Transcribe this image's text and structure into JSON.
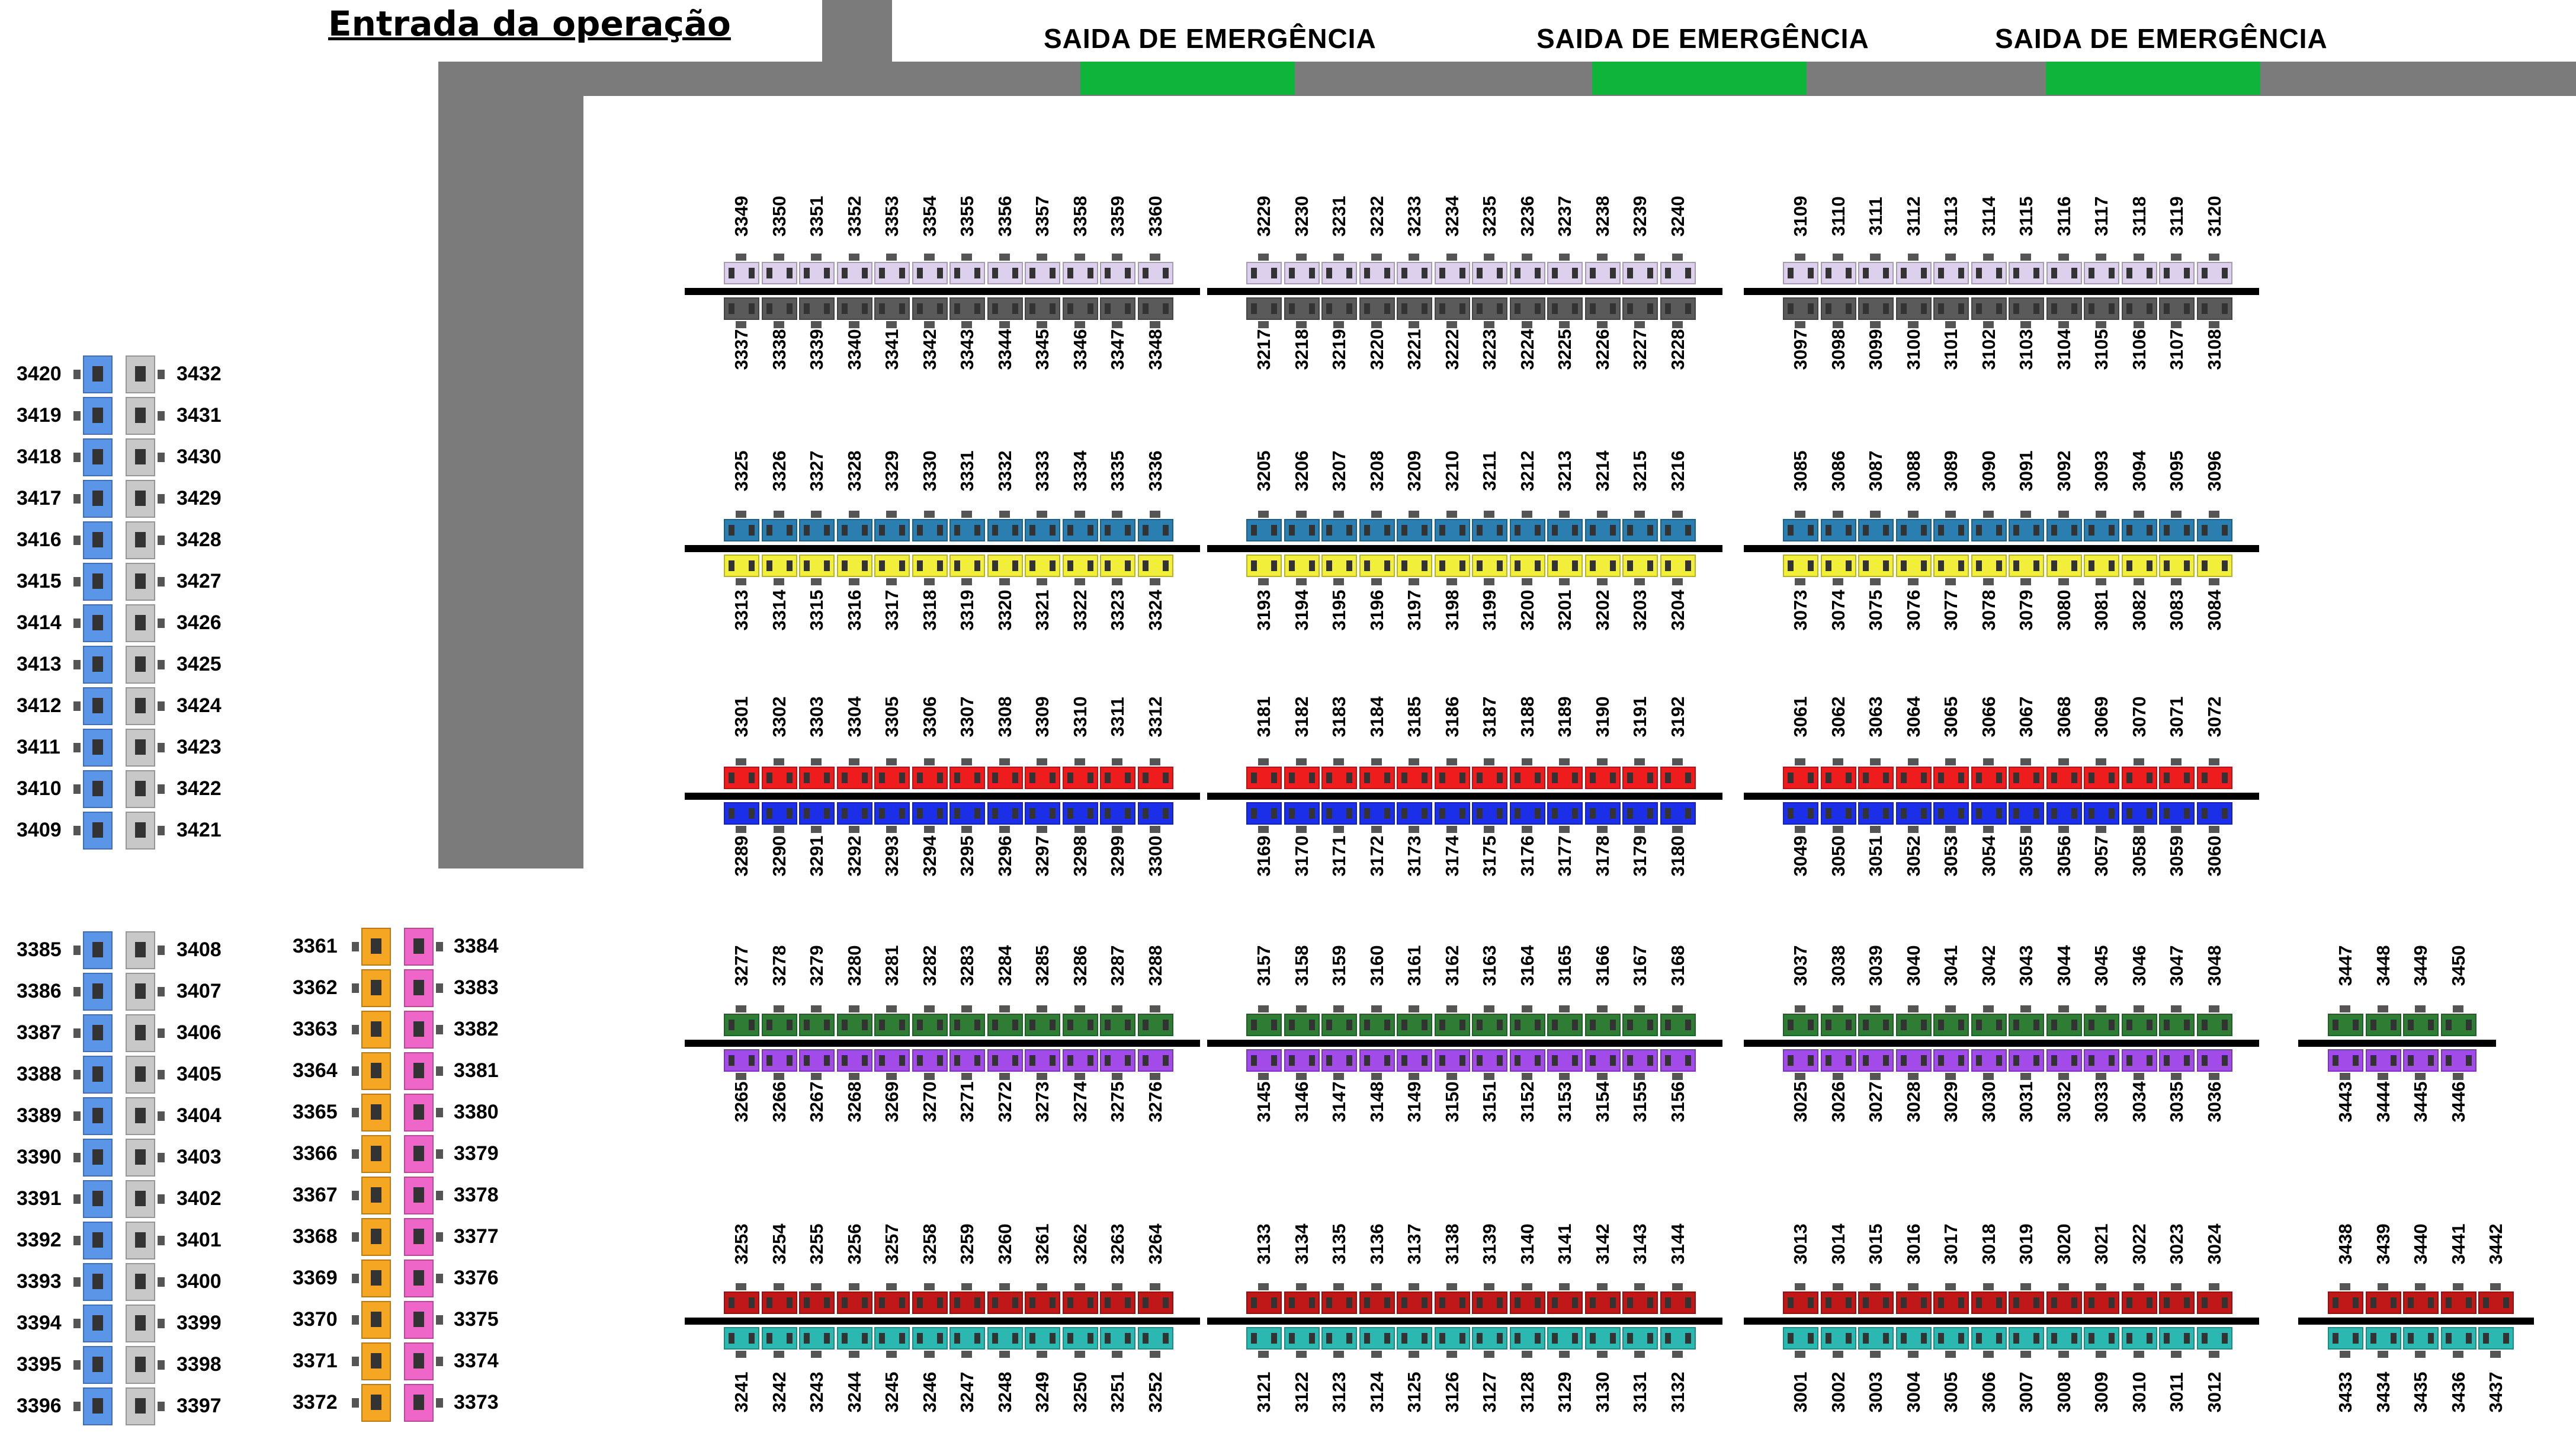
{
  "title": "Entrada da operação",
  "emergency_exits": [
    "SAIDA DE EMERGÊNCIA",
    "SAIDA DE EMERGÊNCIA",
    "SAIDA DE EMERGÊNCIA"
  ],
  "colors": {
    "wall": "#7b7b7b",
    "exit": "#0fb43a",
    "lavender": "#dcd0ec",
    "dark": "#5a5a5a",
    "teal": "#2a7fb0",
    "yellow": "#f2ef3a",
    "red": "#ee1c1c",
    "blue": "#1c2fe8",
    "green": "#2f7d34",
    "purple": "#a24be8",
    "darkred": "#c01818",
    "cyan": "#2ab8b0",
    "lightblue": "#5b95e8",
    "gray": "#c8c8c8",
    "orange": "#f5a623",
    "pink": "#ee66c8"
  },
  "block_rows": [
    {
      "top": [
        3349,
        3229,
        3109
      ],
      "bottom": [
        3337,
        3217,
        3097
      ],
      "topColor": "lavender",
      "bottomColor": "dark"
    },
    {
      "top": [
        3325,
        3205,
        3085
      ],
      "bottom": [
        3313,
        3193,
        3073
      ],
      "topColor": "teal",
      "bottomColor": "yellow"
    },
    {
      "top": [
        3301,
        3181,
        3061
      ],
      "bottom": [
        3289,
        3169,
        3049
      ],
      "topColor": "red",
      "bottomColor": "blue"
    },
    {
      "top": [
        3277,
        3157,
        3037
      ],
      "bottom": [
        3265,
        3145,
        3025
      ],
      "topColor": "green",
      "bottomColor": "purple"
    },
    {
      "top": [
        3253,
        3133,
        3013
      ],
      "bottom": [
        3241,
        3121,
        3001
      ],
      "topColor": "darkred",
      "bottomColor": "cyan"
    }
  ],
  "small_block_row4": {
    "top": [
      3447,
      3448,
      3449,
      3450
    ],
    "bottom": [
      3443,
      3444,
      3445,
      3446
    ]
  },
  "small_block_row5": {
    "top": [
      3438,
      3439,
      3440,
      3441,
      3442
    ],
    "bottom": [
      3433,
      3434,
      3435,
      3436,
      3437
    ]
  },
  "left_upper": {
    "left": [
      3420,
      3419,
      3418,
      3417,
      3416,
      3415,
      3414,
      3413,
      3412,
      3411,
      3410,
      3409
    ],
    "right": [
      3432,
      3431,
      3430,
      3429,
      3428,
      3427,
      3426,
      3425,
      3424,
      3423,
      3422,
      3421
    ]
  },
  "left_lower": {
    "left": [
      3385,
      3386,
      3387,
      3388,
      3389,
      3390,
      3391,
      3392,
      3393,
      3394,
      3395,
      3396
    ],
    "right": [
      3408,
      3407,
      3406,
      3405,
      3404,
      3403,
      3402,
      3401,
      3400,
      3399,
      3398,
      3397
    ]
  },
  "left_lower2": {
    "left": [
      3361,
      3362,
      3363,
      3364,
      3365,
      3366,
      3367,
      3368,
      3369,
      3370,
      3371,
      3372
    ],
    "right": [
      3384,
      3383,
      3382,
      3381,
      3380,
      3379,
      3378,
      3377,
      3376,
      3375,
      3374,
      3373
    ]
  }
}
